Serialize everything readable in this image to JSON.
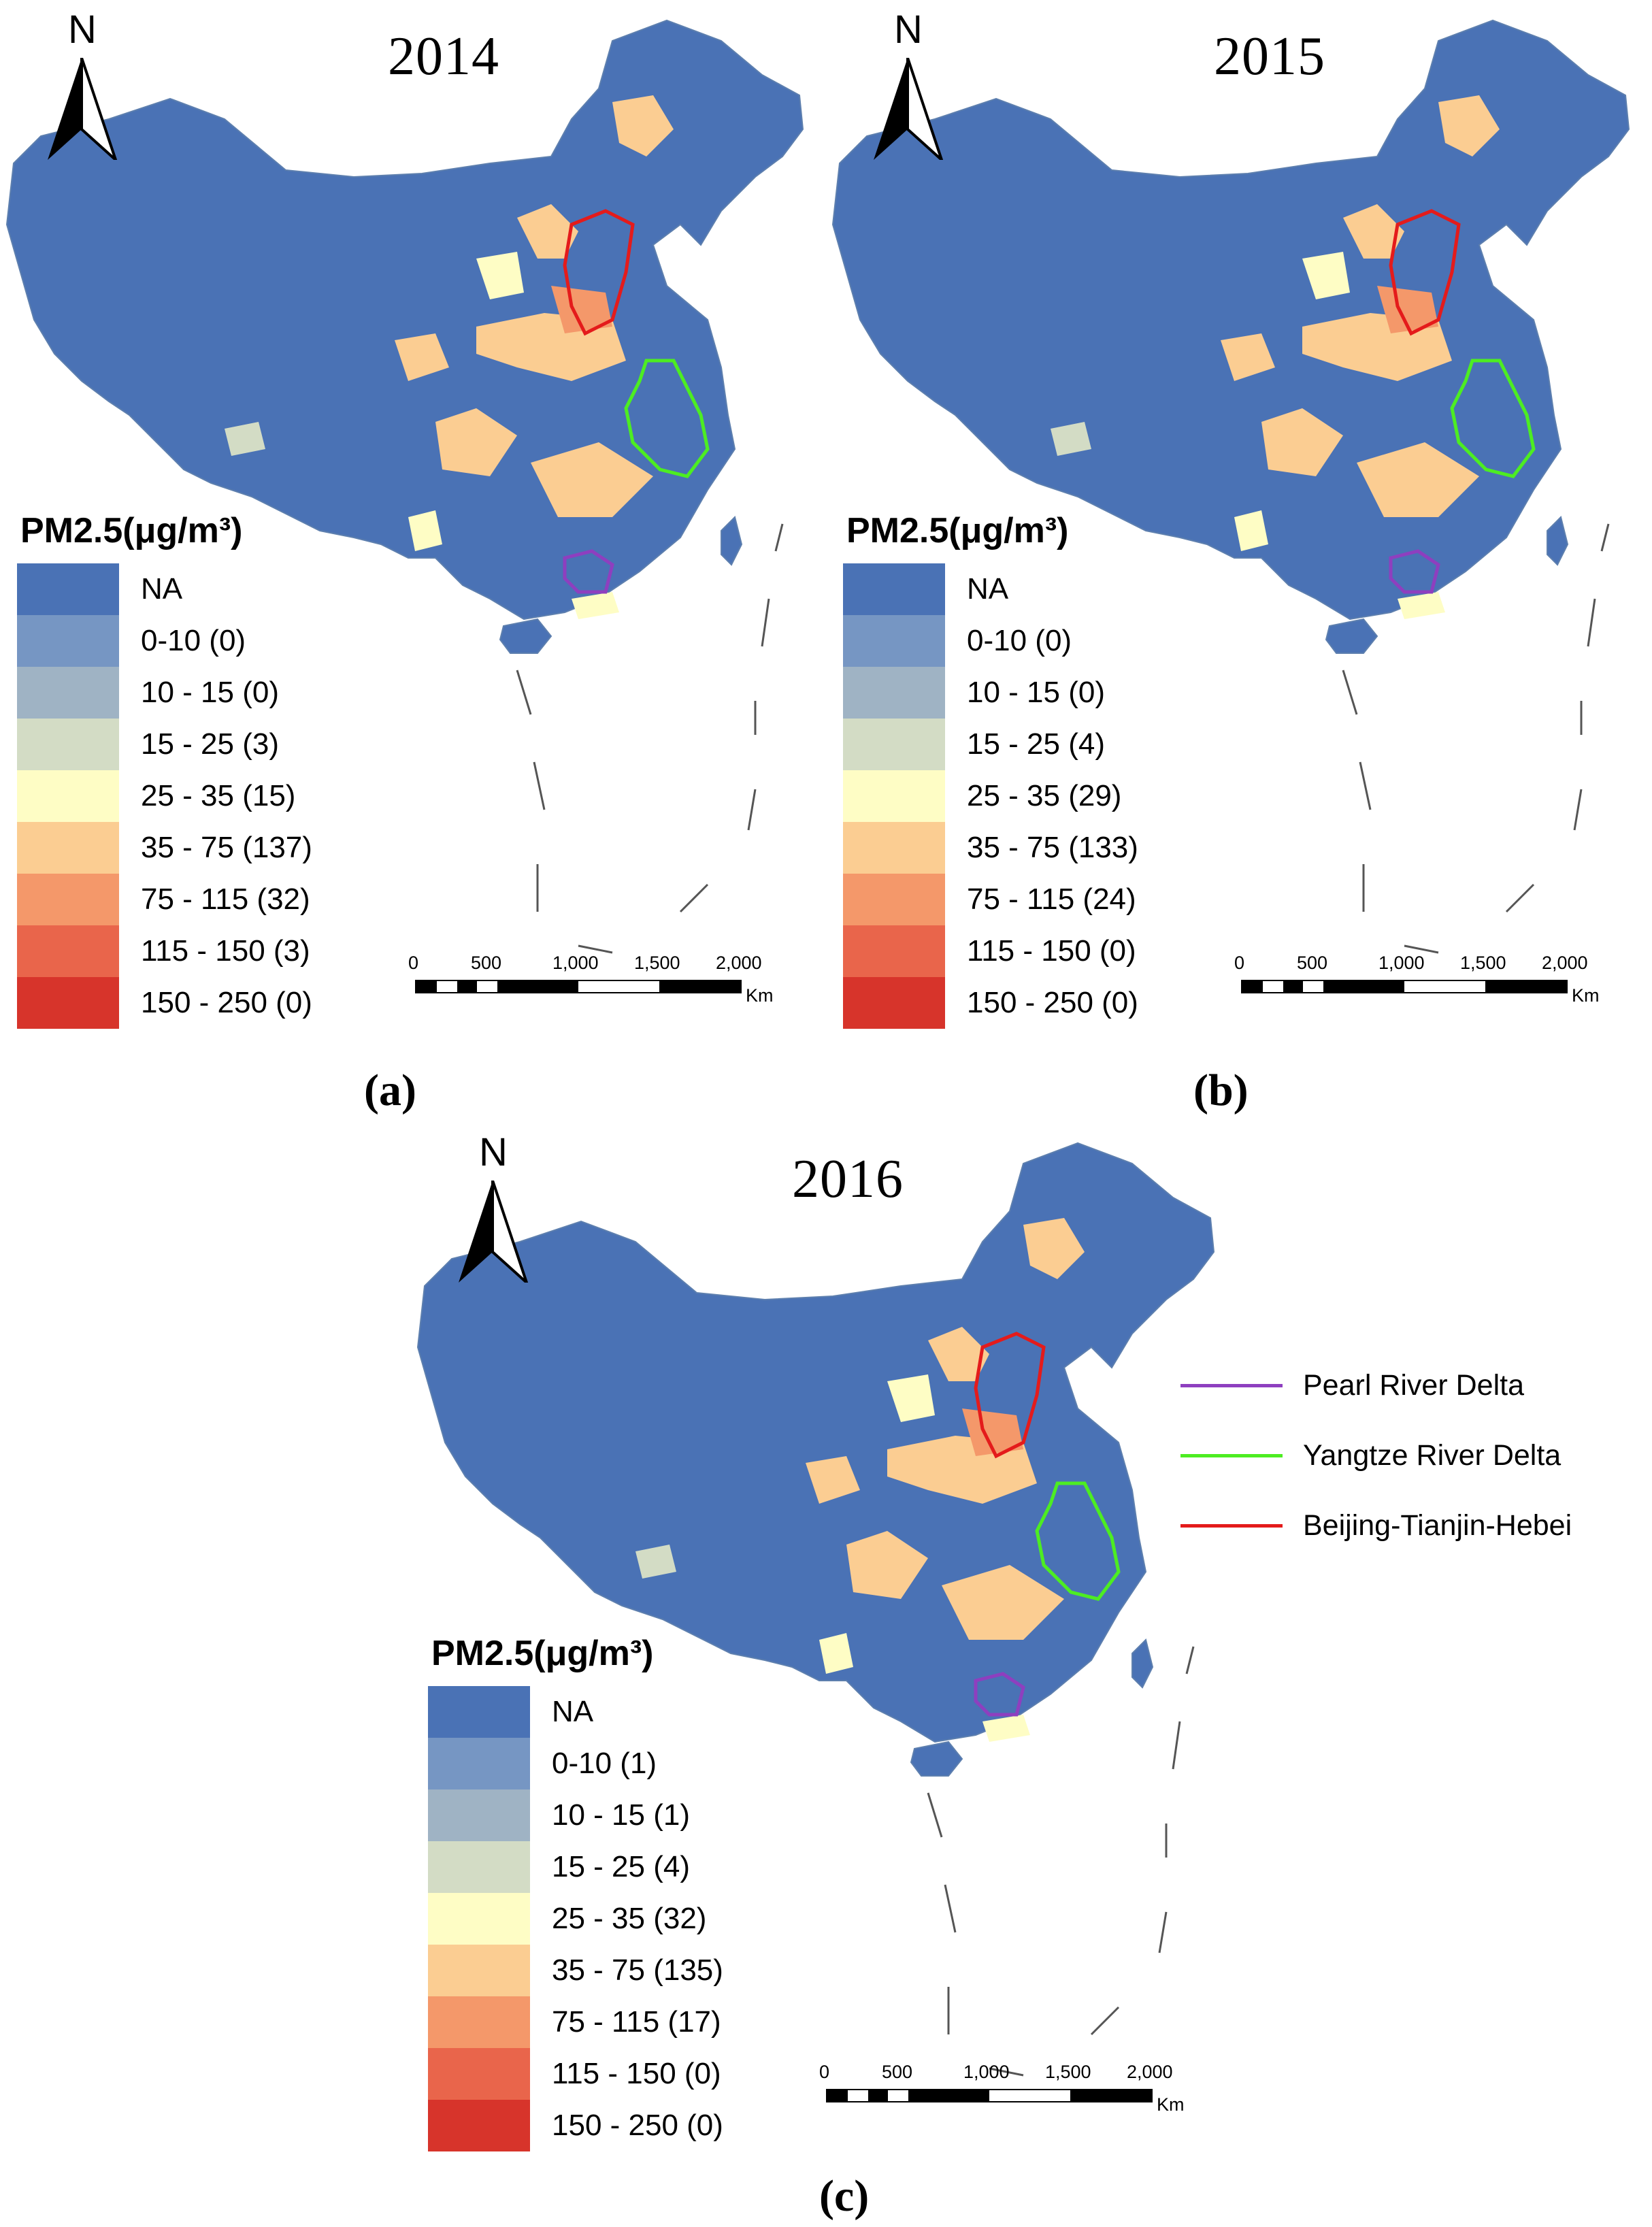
{
  "legend_title": "PM2.5(μg/m³)",
  "legend_colors": [
    "#4a72b5",
    "#7696c3",
    "#9fb3c4",
    "#d3dcc5",
    "#fefdc5",
    "#fbcd92",
    "#f4986a",
    "#e9654b",
    "#d7342b"
  ],
  "scale": {
    "ticks": [
      "0",
      "500",
      "1,000",
      "1,500",
      "2,000"
    ],
    "unit": "Km"
  },
  "colors": {
    "base_region": "#4a72b5",
    "boundary": "#5d7fae",
    "pearl_river_delta": "#8e3fbf",
    "yangtze_river_delta": "#4ded22",
    "beijing_tianjin_hebei": "#e41b1b"
  },
  "panels": [
    {
      "year": "2014",
      "label": "(a)",
      "legend": [
        {
          "label": "NA"
        },
        {
          "label": "0-10 (0)"
        },
        {
          "label": "10 - 15 (0)"
        },
        {
          "label": "15 - 25 (3)"
        },
        {
          "label": "25 - 35 (15)"
        },
        {
          "label": "35 - 75 (137)"
        },
        {
          "label": "75 - 115 (32)"
        },
        {
          "label": "115 - 150 (3)"
        },
        {
          "label": "150 - 250 (0)"
        }
      ]
    },
    {
      "year": "2015",
      "label": "(b)",
      "legend": [
        {
          "label": "NA"
        },
        {
          "label": "0-10 (0)"
        },
        {
          "label": "10 - 15 (0)"
        },
        {
          "label": "15 - 25 (4)"
        },
        {
          "label": "25 - 35 (29)"
        },
        {
          "label": "35 - 75 (133)"
        },
        {
          "label": "75 - 115 (24)"
        },
        {
          "label": "115 - 150 (0)"
        },
        {
          "label": "150 - 250 (0)"
        }
      ]
    },
    {
      "year": "2016",
      "label": "(c)",
      "legend": [
        {
          "label": "NA"
        },
        {
          "label": "0-10 (1)"
        },
        {
          "label": "10 - 15 (1)"
        },
        {
          "label": "15 - 25 (4)"
        },
        {
          "label": "25 - 35 (32)"
        },
        {
          "label": "35 - 75 (135)"
        },
        {
          "label": "75 - 115 (17)"
        },
        {
          "label": "115 - 150 (0)"
        },
        {
          "label": "150 - 250 (0)"
        }
      ]
    }
  ],
  "north_label": "N",
  "region_legend": [
    {
      "label": "Pearl River Delta",
      "color": "#8e3fbf"
    },
    {
      "label": "Yangtze River Delta",
      "color": "#4ded22"
    },
    {
      "label": "Beijing-Tianjin-Hebei",
      "color": "#e41b1b"
    }
  ]
}
